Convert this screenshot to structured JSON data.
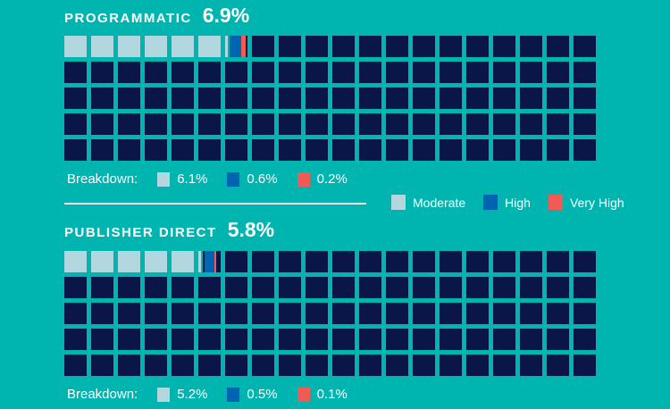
{
  "colors": {
    "background": "#00b5b0",
    "empty": "#0a1548",
    "moderate": "#b3d7df",
    "high": "#0065b0",
    "very_high": "#f15a55"
  },
  "chart_data": [
    {
      "type": "waffle",
      "title": "PROGRAMMATIC",
      "total": "6.9%",
      "cells": 100,
      "rows": 5,
      "columns": 20,
      "breakdown_label": "Breakdown:",
      "series": [
        {
          "name": "Moderate",
          "value": 6.1,
          "label": "6.1%"
        },
        {
          "name": "High",
          "value": 0.6,
          "label": "0.6%"
        },
        {
          "name": "Very High",
          "value": 0.2,
          "label": "0.2%"
        }
      ]
    },
    {
      "type": "waffle",
      "title": "PUBLISHER DIRECT",
      "total": "5.8%",
      "cells": 100,
      "rows": 5,
      "columns": 20,
      "breakdown_label": "Breakdown:",
      "series": [
        {
          "name": "Moderate",
          "value": 5.2,
          "label": "5.2%"
        },
        {
          "name": "High",
          "value": 0.5,
          "label": "0.5%"
        },
        {
          "name": "Very High",
          "value": 0.1,
          "label": "0.1%"
        }
      ]
    }
  ],
  "legend": {
    "placement": "middle-right",
    "items": [
      {
        "label": "Moderate",
        "key": "moderate"
      },
      {
        "label": "High",
        "key": "high"
      },
      {
        "label": "Very High",
        "key": "very_high"
      }
    ]
  }
}
